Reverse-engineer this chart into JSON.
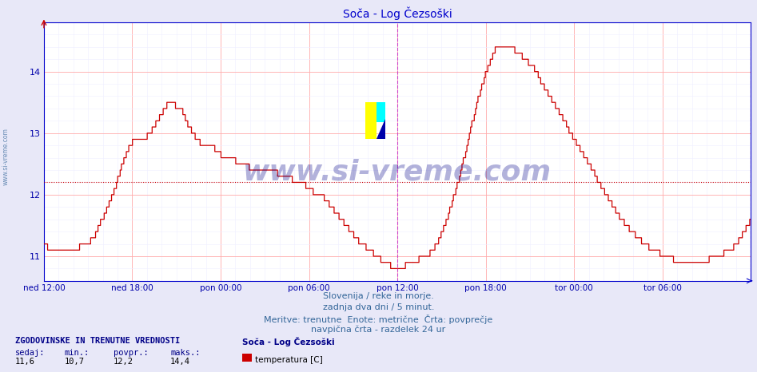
{
  "title": "Soča - Log Čezsoški",
  "title_color": "#0000cc",
  "title_fontsize": 10,
  "background_color": "#e8e8f8",
  "plot_bg_color": "#ffffff",
  "grid_color_major": "#ffcccc",
  "grid_color_minor": "#eeeeff",
  "line_color": "#cc0000",
  "line_width": 1.0,
  "avg_line_color": "#cc0000",
  "avg_line_value": 12.2,
  "vline_color": "#cc44cc",
  "ylim": [
    10.65,
    14.8
  ],
  "yticks": [
    11,
    12,
    13,
    14
  ],
  "ytick_color": "#0000aa",
  "xtick_color": "#0000aa",
  "watermark_text": "www.si-vreme.com",
  "watermark_color": "#000088",
  "watermark_alpha": 0.3,
  "watermark_fontsize": 26,
  "footer_lines": [
    "Slovenija / reke in morje.",
    "zadnja dva dni / 5 minut.",
    "Meritve: trenutne  Enote: metrične  Črta: povprečje",
    "navpična črta - razdelek 24 ur"
  ],
  "footer_color": "#336699",
  "footer_fontsize": 8,
  "legend_title": "ZGODOVINSKE IN TRENUTNE VREDNOSTI",
  "legend_color": "#000088",
  "stats_labels": [
    "sedaj:",
    "min.:",
    "povpr.:",
    "maks.:"
  ],
  "stats_values": [
    "11,6",
    "10,7",
    "12,2",
    "14,4"
  ],
  "series_name": "Soča - Log Čezsoški",
  "series_label": "temperatura [C]",
  "series_color": "#cc0000",
  "xtick_labels": [
    "ned 12:00",
    "ned 18:00",
    "pon 00:00",
    "pon 06:00",
    "pon 12:00",
    "pon 18:00",
    "tor 00:00",
    "tor 06:00"
  ],
  "xtick_positions": [
    0.0,
    0.125,
    0.25,
    0.375,
    0.5,
    0.625,
    0.75,
    0.875
  ],
  "vline_position": 0.5,
  "axis_color": "#0000cc",
  "left_label": "www.si-vreme.com",
  "key_x": [
    0.0,
    0.005,
    0.01,
    0.02,
    0.03,
    0.05,
    0.06,
    0.07,
    0.08,
    0.09,
    0.1,
    0.11,
    0.12,
    0.13,
    0.14,
    0.15,
    0.16,
    0.17,
    0.175,
    0.18,
    0.185,
    0.19,
    0.195,
    0.2,
    0.21,
    0.22,
    0.23,
    0.24,
    0.25,
    0.26,
    0.27,
    0.28,
    0.29,
    0.3,
    0.31,
    0.32,
    0.33,
    0.34,
    0.35,
    0.36,
    0.37,
    0.375,
    0.38,
    0.39,
    0.4,
    0.41,
    0.42,
    0.43,
    0.44,
    0.45,
    0.46,
    0.47,
    0.475,
    0.48,
    0.49,
    0.495,
    0.5,
    0.505,
    0.51,
    0.52,
    0.53,
    0.54,
    0.55,
    0.56,
    0.57,
    0.58,
    0.59,
    0.6,
    0.61,
    0.615,
    0.62,
    0.625,
    0.63,
    0.635,
    0.64,
    0.65,
    0.66,
    0.67,
    0.68,
    0.69,
    0.7,
    0.71,
    0.72,
    0.73,
    0.74,
    0.75,
    0.76,
    0.77,
    0.78,
    0.79,
    0.8,
    0.81,
    0.82,
    0.83,
    0.84,
    0.85,
    0.86,
    0.87,
    0.875,
    0.88,
    0.89,
    0.9,
    0.91,
    0.92,
    0.93,
    0.94,
    0.95,
    0.96,
    0.97,
    0.98,
    0.99,
    1.0
  ],
  "key_y": [
    11.2,
    11.15,
    11.1,
    11.1,
    11.1,
    11.15,
    11.2,
    11.3,
    11.55,
    11.8,
    12.1,
    12.5,
    12.8,
    12.9,
    12.9,
    13.0,
    13.2,
    13.4,
    13.5,
    13.5,
    13.45,
    13.4,
    13.35,
    13.2,
    13.0,
    12.85,
    12.8,
    12.75,
    12.65,
    12.6,
    12.55,
    12.5,
    12.45,
    12.4,
    12.4,
    12.4,
    12.35,
    12.3,
    12.25,
    12.2,
    12.15,
    12.1,
    12.05,
    12.0,
    11.9,
    11.75,
    11.6,
    11.45,
    11.3,
    11.2,
    11.1,
    11.0,
    10.95,
    10.9,
    10.85,
    10.82,
    10.8,
    10.82,
    10.85,
    10.9,
    10.95,
    11.0,
    11.1,
    11.3,
    11.6,
    12.0,
    12.4,
    12.9,
    13.4,
    13.6,
    13.8,
    14.0,
    14.15,
    14.3,
    14.4,
    14.45,
    14.4,
    14.3,
    14.2,
    14.1,
    13.9,
    13.7,
    13.5,
    13.3,
    13.1,
    12.9,
    12.7,
    12.5,
    12.3,
    12.1,
    11.9,
    11.7,
    11.55,
    11.4,
    11.3,
    11.2,
    11.1,
    11.05,
    11.0,
    10.98,
    10.95,
    10.92,
    10.9,
    10.9,
    10.92,
    10.95,
    11.0,
    11.05,
    11.1,
    11.2,
    11.4,
    11.6
  ]
}
